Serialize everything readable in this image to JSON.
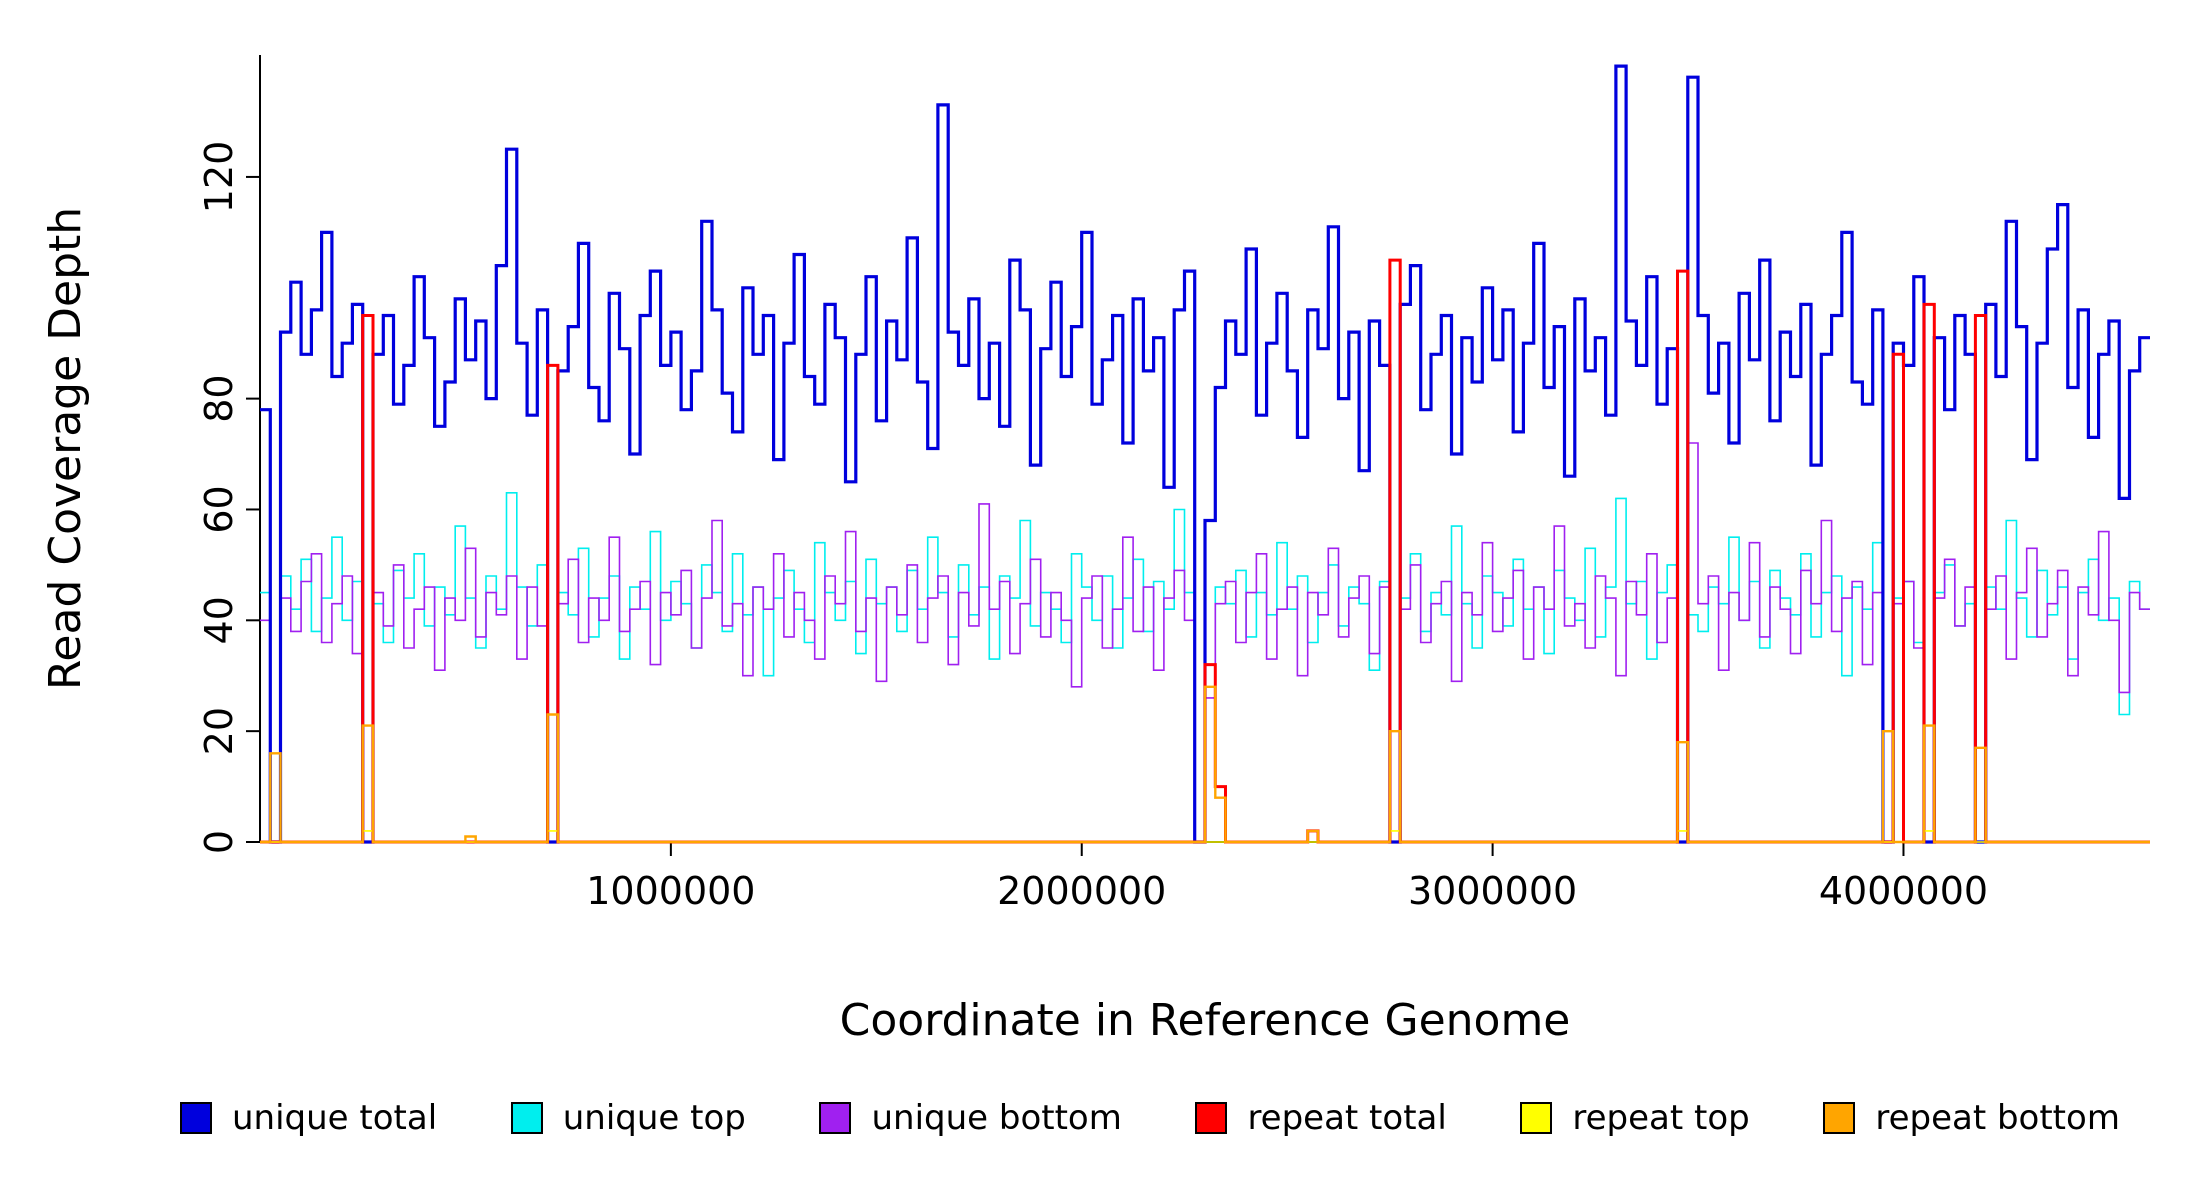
{
  "figure": {
    "title": "",
    "xlabel": "Coordinate in Reference Genome",
    "ylabel": "Read Coverage Depth"
  },
  "legend": {
    "items": [
      {
        "label": "unique total",
        "color": "#0000DD"
      },
      {
        "label": "unique top",
        "color": "#00EEEE"
      },
      {
        "label": "unique bottom",
        "color": "#A020F0"
      },
      {
        "label": "repeat total",
        "color": "#FF0000"
      },
      {
        "label": "repeat top",
        "color": "#FFFF00"
      },
      {
        "label": "repeat bottom",
        "color": "#FFA500"
      }
    ]
  },
  "chart_data": {
    "type": "line",
    "subtype": "step",
    "title": "",
    "xlabel": "Coordinate in Reference Genome",
    "ylabel": "Read Coverage Depth",
    "xlim": [
      0,
      4600000
    ],
    "ylim": [
      0,
      142
    ],
    "grid": false,
    "legend_position": "bottom",
    "x_start": 0,
    "x_step": 25000,
    "n_points": 184,
    "x_ticks": [
      {
        "value": 1000000,
        "label": "1000000"
      },
      {
        "value": 2000000,
        "label": "2000000"
      },
      {
        "value": 3000000,
        "label": "3000000"
      },
      {
        "value": 4000000,
        "label": "4000000"
      }
    ],
    "y_ticks": [
      {
        "value": 0,
        "label": "0"
      },
      {
        "value": 20,
        "label": "20"
      },
      {
        "value": 40,
        "label": "40"
      },
      {
        "value": 60,
        "label": "60"
      },
      {
        "value": 80,
        "label": "80"
      },
      {
        "value": 120,
        "label": "120"
      }
    ],
    "draw_order": [
      1,
      2,
      0,
      3,
      4,
      5
    ],
    "series": [
      {
        "name": "unique total",
        "color": "#0000DD",
        "width": 3.2,
        "values": [
          78,
          0,
          92,
          101,
          88,
          96,
          110,
          84,
          90,
          97,
          0,
          88,
          95,
          79,
          86,
          102,
          91,
          75,
          83,
          98,
          87,
          94,
          80,
          104,
          125,
          90,
          77,
          96,
          0,
          85,
          93,
          108,
          82,
          76,
          99,
          89,
          70,
          95,
          103,
          86,
          92,
          78,
          85,
          112,
          96,
          81,
          74,
          100,
          88,
          95,
          69,
          90,
          106,
          84,
          79,
          97,
          91,
          65,
          88,
          102,
          76,
          94,
          87,
          109,
          83,
          71,
          133,
          92,
          86,
          98,
          80,
          90,
          75,
          105,
          96,
          68,
          89,
          101,
          84,
          93,
          110,
          79,
          87,
          95,
          72,
          98,
          85,
          91,
          64,
          96,
          103,
          0,
          58,
          82,
          94,
          88,
          107,
          77,
          90,
          99,
          85,
          73,
          96,
          89,
          111,
          80,
          92,
          67,
          94,
          86,
          0,
          97,
          104,
          78,
          88,
          95,
          70,
          91,
          83,
          100,
          87,
          96,
          74,
          90,
          108,
          82,
          93,
          66,
          98,
          85,
          91,
          77,
          140,
          94,
          86,
          102,
          79,
          89,
          0,
          138,
          95,
          81,
          90,
          72,
          99,
          87,
          105,
          76,
          92,
          84,
          97,
          68,
          88,
          95,
          110,
          83,
          79,
          96,
          0,
          90,
          86,
          102,
          0,
          91,
          78,
          95,
          88,
          0,
          97,
          84,
          112,
          93,
          69,
          90,
          107,
          115,
          82,
          96,
          73,
          88,
          94,
          62,
          85,
          91
        ]
      },
      {
        "name": "unique top",
        "color": "#00EEEE",
        "width": 1.6,
        "values": [
          45,
          0,
          48,
          42,
          51,
          38,
          44,
          55,
          40,
          47,
          0,
          43,
          36,
          49,
          44,
          52,
          39,
          46,
          41,
          57,
          44,
          35,
          48,
          42,
          63,
          46,
          39,
          50,
          0,
          45,
          41,
          53,
          37,
          44,
          48,
          33,
          46,
          42,
          56,
          40,
          47,
          43,
          35,
          50,
          45,
          38,
          52,
          41,
          46,
          30,
          44,
          49,
          42,
          36,
          54,
          45,
          40,
          47,
          34,
          51,
          43,
          46,
          38,
          49,
          42,
          55,
          45,
          37,
          50,
          41,
          46,
          33,
          48,
          44,
          58,
          39,
          45,
          42,
          36,
          52,
          46,
          40,
          48,
          35,
          44,
          51,
          38,
          47,
          42,
          60,
          45,
          0,
          32,
          46,
          43,
          49,
          37,
          45,
          41,
          54,
          42,
          48,
          36,
          45,
          50,
          39,
          46,
          43,
          31,
          47,
          0,
          44,
          52,
          38,
          45,
          41,
          57,
          43,
          35,
          48,
          45,
          39,
          51,
          42,
          46,
          34,
          49,
          44,
          40,
          53,
          37,
          46,
          62,
          43,
          47,
          33,
          45,
          50,
          0,
          41,
          38,
          46,
          43,
          55,
          40,
          47,
          35,
          49,
          44,
          41,
          52,
          37,
          45,
          48,
          30,
          46,
          42,
          54,
          0,
          44,
          47,
          36,
          0,
          45,
          50,
          39,
          43,
          0,
          46,
          42,
          58,
          44,
          37,
          49,
          41,
          46,
          33,
          45,
          51,
          40,
          44,
          23,
          47,
          42
        ]
      },
      {
        "name": "unique bottom",
        "color": "#A020F0",
        "width": 1.6,
        "values": [
          40,
          0,
          44,
          38,
          47,
          52,
          36,
          43,
          48,
          34,
          0,
          45,
          39,
          50,
          35,
          42,
          46,
          31,
          44,
          40,
          53,
          37,
          45,
          41,
          48,
          33,
          46,
          39,
          0,
          43,
          51,
          36,
          44,
          40,
          55,
          38,
          42,
          47,
          32,
          45,
          41,
          49,
          35,
          44,
          58,
          39,
          43,
          30,
          46,
          42,
          52,
          37,
          45,
          40,
          33,
          48,
          43,
          56,
          38,
          44,
          29,
          46,
          41,
          50,
          36,
          44,
          48,
          32,
          45,
          39,
          61,
          42,
          47,
          34,
          43,
          51,
          37,
          45,
          40,
          28,
          44,
          48,
          35,
          42,
          55,
          38,
          46,
          31,
          44,
          49,
          40,
          0,
          26,
          43,
          47,
          36,
          45,
          52,
          33,
          42,
          46,
          30,
          45,
          41,
          53,
          37,
          44,
          48,
          34,
          46,
          0,
          42,
          50,
          36,
          43,
          47,
          29,
          45,
          41,
          54,
          38,
          44,
          49,
          33,
          46,
          42,
          57,
          39,
          43,
          35,
          48,
          44,
          30,
          47,
          41,
          52,
          36,
          44,
          0,
          72,
          43,
          48,
          31,
          45,
          40,
          54,
          37,
          46,
          42,
          34,
          49,
          43,
          58,
          38,
          44,
          47,
          32,
          45,
          0,
          43,
          47,
          35,
          0,
          44,
          51,
          39,
          46,
          0,
          42,
          48,
          33,
          45,
          53,
          37,
          43,
          49,
          30,
          46,
          41,
          56,
          40,
          27,
          45,
          42
        ]
      },
      {
        "name": "repeat total",
        "color": "#FF0000",
        "width": 3.0,
        "base": 0,
        "sparse": {
          "10": 95,
          "28": 86,
          "92": 32,
          "93": 10,
          "102": 2,
          "110": 105,
          "138": 103,
          "159": 88,
          "162": 97,
          "167": 95
        }
      },
      {
        "name": "repeat top",
        "color": "#FFFF00",
        "width": 1.6,
        "base": 0,
        "sparse": {
          "10": 2,
          "28": 2,
          "110": 2,
          "138": 2,
          "162": 2
        }
      },
      {
        "name": "repeat bottom",
        "color": "#FFA500",
        "width": 2.4,
        "base": 0,
        "sparse": {
          "1": 16,
          "10": 21,
          "20": 1,
          "28": 23,
          "92": 28,
          "93": 8,
          "102": 2,
          "110": 20,
          "138": 18,
          "158": 20,
          "162": 21,
          "167": 17
        }
      }
    ]
  }
}
